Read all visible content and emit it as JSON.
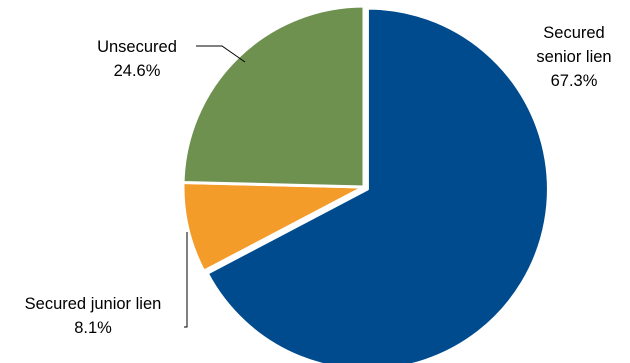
{
  "chart_data": {
    "type": "pie",
    "title": "",
    "slices": [
      {
        "label": "Secured senior lien",
        "label_lines": [
          "Secured",
          "senior lien"
        ],
        "value": 67.3,
        "value_label": "67.3%",
        "color": "#004b8d"
      },
      {
        "label": "Secured junior lien",
        "label_lines": [
          "Secured junior lien"
        ],
        "value": 8.1,
        "value_label": "8.1%",
        "color": "#f39c2a"
      },
      {
        "label": "Unsecured",
        "label_lines": [
          "Unsecured"
        ],
        "value": 24.6,
        "value_label": "24.6%",
        "color": "#6f9150"
      }
    ],
    "start_angle_deg": 0,
    "direction": "clockwise",
    "exploded_slice": "Secured senior lien",
    "legend": "none"
  }
}
